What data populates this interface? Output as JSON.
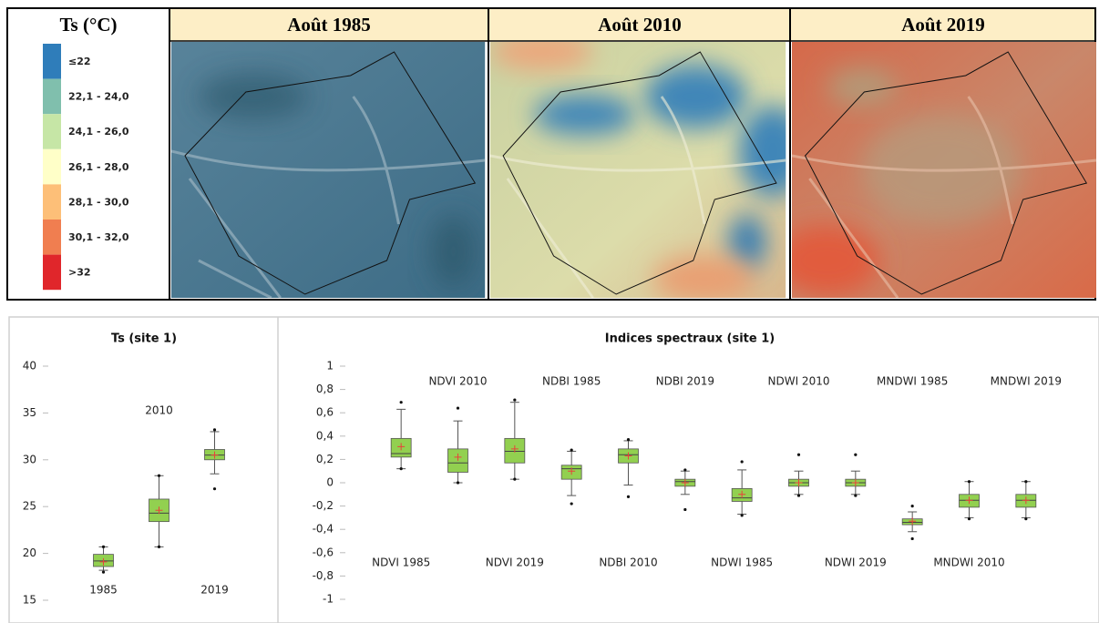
{
  "legend": {
    "title": "Ts (°C)",
    "items": [
      {
        "label": "≤22",
        "color": "#2f7dba"
      },
      {
        "label": "22,1 - 24,0",
        "color": "#80bfad"
      },
      {
        "label": "24,1 - 26,0",
        "color": "#c6e6a6"
      },
      {
        "label": "26,1 - 28,0",
        "color": "#ffffc8"
      },
      {
        "label": "28,1 - 30,0",
        "color": "#fdbf78"
      },
      {
        "label": "30,1 - 32,0",
        "color": "#f07e50"
      },
      {
        "label": ">32",
        "color": "#e0262b"
      }
    ]
  },
  "map_headers": [
    "Août 1985",
    "Août 2010",
    "Août 2019"
  ],
  "chart_data": [
    {
      "type": "box",
      "title": "Ts (site 1)",
      "color": "#92d050",
      "mean_color": "#e8433b",
      "categories": [
        "1985",
        "2010",
        "2019"
      ],
      "boxes": [
        {
          "min": 18.2,
          "q1": 18.6,
          "median": 19.2,
          "q3": 19.9,
          "max": 20.7,
          "mean": 19.1,
          "points": [
            20.7,
            18.0
          ]
        },
        {
          "min": 20.7,
          "q1": 23.4,
          "median": 24.3,
          "q3": 25.8,
          "max": 28.3,
          "mean": 24.6,
          "points": [
            28.3,
            20.7
          ]
        },
        {
          "min": 28.5,
          "q1": 30.0,
          "median": 30.5,
          "q3": 31.1,
          "max": 33.0,
          "mean": 30.5,
          "points": [
            33.2,
            26.9
          ]
        }
      ],
      "ylim": [
        15,
        40
      ],
      "yticks": [
        15,
        20,
        25,
        30,
        35,
        40
      ]
    },
    {
      "type": "box",
      "title": "Indices spectraux (site 1)",
      "color": "#92d050",
      "mean_color": "#e8433b",
      "categories": [
        "NDVI 1985",
        "NDVI 2010",
        "NDVI 2019",
        "NDBI 1985",
        "NDBI 2010",
        "NDBI 2019",
        "NDWI 1985",
        "NDWI 2010",
        "NDWI 2019",
        "MNDWI 1985",
        "MNDWI 2010",
        "MNDWI 2019"
      ],
      "boxes": [
        {
          "min": 0.12,
          "q1": 0.22,
          "median": 0.25,
          "q3": 0.38,
          "max": 0.63,
          "mean": 0.31,
          "points": [
            0.69,
            0.12
          ]
        },
        {
          "min": 0.0,
          "q1": 0.09,
          "median": 0.17,
          "q3": 0.29,
          "max": 0.53,
          "mean": 0.22,
          "points": [
            0.64,
            0.0
          ]
        },
        {
          "min": 0.03,
          "q1": 0.17,
          "median": 0.27,
          "q3": 0.38,
          "max": 0.69,
          "mean": 0.29,
          "points": [
            0.71,
            0.03
          ]
        },
        {
          "min": -0.11,
          "q1": 0.03,
          "median": 0.12,
          "q3": 0.15,
          "max": 0.27,
          "mean": 0.1,
          "points": [
            0.28,
            -0.18
          ]
        },
        {
          "min": -0.02,
          "q1": 0.17,
          "median": 0.24,
          "q3": 0.29,
          "max": 0.36,
          "mean": 0.23,
          "points": [
            0.37,
            -0.12
          ]
        },
        {
          "min": -0.1,
          "q1": -0.03,
          "median": 0.01,
          "q3": 0.03,
          "max": 0.1,
          "mean": 0.0,
          "points": [
            0.11,
            -0.23
          ]
        },
        {
          "min": -0.27,
          "q1": -0.16,
          "median": -0.13,
          "q3": -0.05,
          "max": 0.11,
          "mean": -0.1,
          "points": [
            0.18,
            -0.28
          ]
        },
        {
          "min": -0.1,
          "q1": -0.03,
          "median": 0.0,
          "q3": 0.03,
          "max": 0.1,
          "mean": 0.0,
          "points": [
            0.24,
            -0.11
          ]
        },
        {
          "min": -0.1,
          "q1": -0.03,
          "median": 0.0,
          "q3": 0.03,
          "max": 0.1,
          "mean": 0.0,
          "points": [
            0.24,
            -0.11
          ]
        },
        {
          "min": -0.42,
          "q1": -0.36,
          "median": -0.34,
          "q3": -0.31,
          "max": -0.25,
          "mean": -0.33,
          "points": [
            -0.2,
            -0.48
          ]
        },
        {
          "min": -0.3,
          "q1": -0.21,
          "median": -0.15,
          "q3": -0.1,
          "max": 0.01,
          "mean": -0.15,
          "points": [
            0.01,
            -0.31
          ]
        },
        {
          "min": -0.3,
          "q1": -0.21,
          "median": -0.15,
          "q3": -0.1,
          "max": 0.01,
          "mean": -0.15,
          "points": [
            0.01,
            -0.31
          ]
        }
      ],
      "ylim": [
        -1,
        1
      ],
      "yticks": [
        -1,
        {
          "value": -0.8,
          "label": "-0,8"
        },
        {
          "value": -0.6,
          "label": "-0,6"
        },
        {
          "value": -0.4,
          "label": "-0,4"
        },
        {
          "value": -0.2,
          "label": "-0,2"
        },
        0,
        {
          "value": 0.2,
          "label": "0,2"
        },
        {
          "value": 0.4,
          "label": "0,4"
        },
        {
          "value": 0.6,
          "label": "0,6"
        },
        {
          "value": 0.8,
          "label": "0,8"
        },
        1
      ]
    }
  ]
}
